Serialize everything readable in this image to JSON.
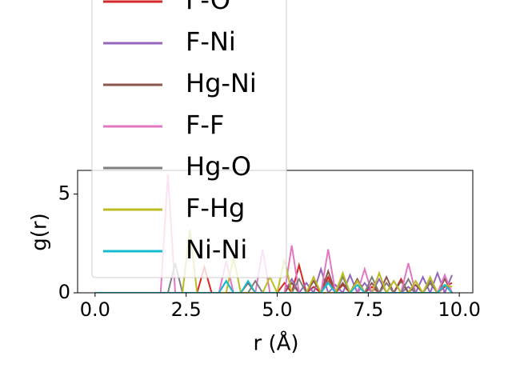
{
  "chart_data": {
    "type": "line",
    "xlabel": "r (Å)",
    "ylabel": "g(r)",
    "x": [
      0,
      1.8,
      2.0,
      2.2,
      2.4,
      2.6,
      2.8,
      3.0,
      3.2,
      3.4,
      3.6,
      3.8,
      4.0,
      4.2,
      4.4,
      4.6,
      4.8,
      5.0,
      5.2,
      5.4,
      5.6,
      5.8,
      6.0,
      6.2,
      6.4,
      6.6,
      6.8,
      7.0,
      7.2,
      7.4,
      7.6,
      7.8,
      8.0,
      8.2,
      8.4,
      8.6,
      8.8,
      9.0,
      9.2,
      9.4,
      9.6,
      9.8
    ],
    "series": [
      {
        "name": "F-O",
        "color": "#d62728",
        "values": [
          0,
          0,
          0,
          0,
          0,
          0,
          0,
          1.3,
          0,
          0,
          0.6,
          0,
          0,
          0,
          0,
          0,
          0,
          0,
          0.5,
          0,
          1.4,
          0,
          0.3,
          0,
          0.8,
          0,
          0.4,
          0,
          0.6,
          0,
          0.3,
          0,
          0.5,
          0,
          0.7,
          0,
          0.4,
          0,
          0.6,
          0,
          0.3,
          0.5
        ]
      },
      {
        "name": "F-Ni",
        "color": "#9467bd",
        "values": [
          0,
          0,
          0,
          0,
          0,
          0,
          0,
          0,
          0,
          0,
          0.6,
          0,
          0,
          0,
          0,
          0,
          0,
          0,
          0,
          0.7,
          0,
          0.5,
          0,
          1.2,
          0,
          0.4,
          0,
          0.9,
          0,
          0.5,
          0,
          0.7,
          0,
          0.6,
          0,
          0.3,
          0,
          0.8,
          0,
          1.0,
          0,
          0.9
        ]
      },
      {
        "name": "Hg-Ni",
        "color": "#8c564b",
        "values": [
          0,
          0,
          0,
          0,
          0,
          0,
          0,
          0,
          0,
          0,
          0,
          0,
          0,
          0.5,
          0,
          0,
          0,
          0,
          0,
          0.5,
          0,
          0,
          0.6,
          0,
          1.1,
          0,
          0.5,
          0,
          0.7,
          0,
          0.5,
          0,
          0.8,
          0,
          0.6,
          0,
          0.4,
          0,
          0.5,
          0,
          0.7,
          0
        ]
      },
      {
        "name": "F-F",
        "color": "#e377c2",
        "values": [
          0,
          0,
          6.0,
          0,
          0,
          0,
          0,
          0,
          0,
          0,
          1.6,
          0,
          0,
          0,
          0,
          2.2,
          0,
          0,
          0,
          2.4,
          0,
          0,
          0,
          0,
          2.2,
          0,
          0,
          0,
          0,
          1.2,
          0,
          0,
          0,
          0,
          0,
          1.5,
          0,
          0,
          0.6,
          0,
          0.9,
          0
        ]
      },
      {
        "name": "Hg-O",
        "color": "#7f7f7f",
        "values": [
          0,
          0,
          0,
          1.5,
          0,
          0,
          0,
          0,
          0,
          0,
          0,
          0,
          0,
          0,
          0.6,
          0,
          0,
          0,
          0,
          0,
          0.7,
          0,
          0,
          0,
          0.6,
          0,
          0.8,
          0,
          0,
          0,
          0.8,
          0,
          0.5,
          0,
          0,
          0.7,
          0,
          0,
          0.6,
          0,
          0.4,
          0
        ]
      },
      {
        "name": "F-Hg",
        "color": "#bcbd22",
        "values": [
          0,
          0,
          0,
          0,
          0,
          3.2,
          0,
          0,
          0,
          0,
          0,
          1.8,
          0,
          0,
          0,
          0,
          0.8,
          0,
          1.7,
          0,
          0,
          0,
          0.8,
          0,
          0,
          0,
          1.0,
          0,
          0.6,
          0,
          0,
          1.0,
          0,
          0.6,
          0,
          0,
          0.6,
          0,
          0.8,
          0,
          0.4,
          0.3
        ]
      },
      {
        "name": "Ni-Ni",
        "color": "#17becf",
        "values": [
          0,
          0,
          0,
          0,
          0,
          0,
          0,
          0,
          0,
          0,
          0.6,
          0,
          0,
          0.6,
          0,
          0,
          0,
          0,
          0,
          0,
          0,
          0,
          0,
          0,
          0.5,
          0,
          0,
          0,
          0.4,
          0,
          0,
          0,
          0,
          0,
          0,
          0,
          0,
          0,
          0,
          0,
          0.4,
          0
        ]
      }
    ],
    "xlim": [
      -0.48,
      10.37
    ],
    "ylim": [
      0,
      6.2
    ],
    "xticks": [
      {
        "value": 0,
        "label": "0.0"
      },
      {
        "value": 2.5,
        "label": "2.5"
      },
      {
        "value": 5,
        "label": "5.0"
      },
      {
        "value": 7.5,
        "label": "7.5"
      },
      {
        "value": 10,
        "label": "10.0"
      }
    ],
    "yticks": [
      0,
      5
    ]
  }
}
